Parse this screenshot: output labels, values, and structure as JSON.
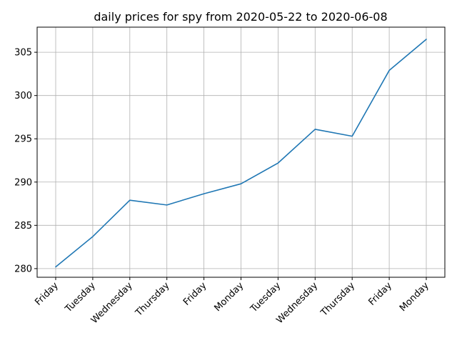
{
  "chart_data": {
    "type": "line",
    "title": "daily prices for spy from 2020-05-22 to 2020-06-08",
    "xlabel": "",
    "ylabel": "",
    "categories": [
      "Friday",
      "Tuesday",
      "Wednesday",
      "Thursday",
      "Friday",
      "Monday",
      "Tuesday",
      "Wednesday",
      "Thursday",
      "Friday",
      "Monday"
    ],
    "series": [
      {
        "values": [
          280.2,
          283.7,
          287.9,
          287.35,
          288.65,
          289.8,
          292.2,
          296.1,
          295.3,
          302.9,
          306.5
        ]
      }
    ],
    "ylim": [
      279.0,
      307.9
    ],
    "yticks": [
      280,
      285,
      290,
      295,
      300,
      305
    ],
    "grid": true,
    "colors": {
      "line": "#1f77b4",
      "grid": "#b0b0b0",
      "axis": "#000000"
    }
  }
}
